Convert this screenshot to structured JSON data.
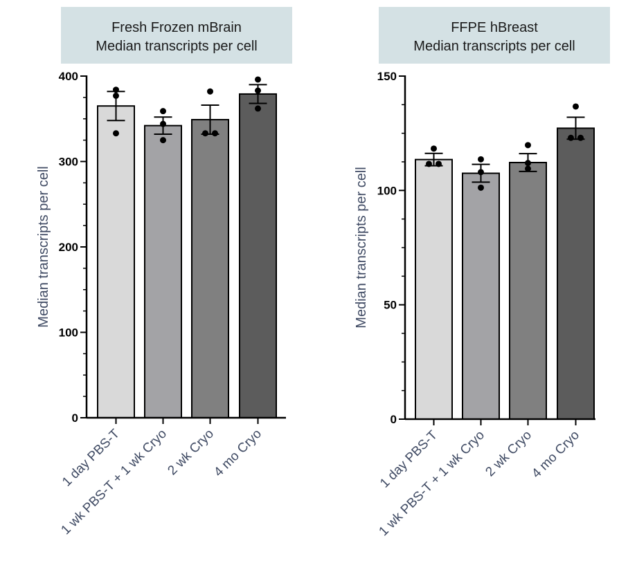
{
  "colors": {
    "title_box": "#d4e1e4",
    "axis": "#000000",
    "axis_label": "#3f4a63",
    "bar_fills": [
      "#d9d9d9",
      "#a3a3a6",
      "#808080",
      "#5c5c5c"
    ],
    "point": "#000000"
  },
  "chart_data": [
    {
      "type": "bar",
      "title": "Fresh Frozen mBrain\nMedian transcripts per cell",
      "xlabel": "",
      "ylabel": "Median transcripts per cell",
      "ylim": [
        0,
        400
      ],
      "yticks": [
        0,
        100,
        200,
        300,
        400
      ],
      "minor_ticks_per_major": 4,
      "grid": false,
      "categories": [
        "1 day PBS-T",
        "1 wk PBS-T + 1 wk Cryo",
        "2 wk Cryo",
        "4 mo Cryo"
      ],
      "values": [
        365,
        342,
        349,
        379
      ],
      "errors": [
        17,
        10,
        17,
        11
      ],
      "points": [
        [
          384,
          377,
          333
        ],
        [
          359,
          344,
          325
        ],
        [
          382,
          333,
          333
        ],
        [
          396,
          383,
          362
        ]
      ]
    },
    {
      "type": "bar",
      "title": "FFPE hBreast\nMedian transcripts per cell",
      "xlabel": "",
      "ylabel": "Median transcripts per cell",
      "ylim": [
        0,
        150
      ],
      "yticks": [
        0,
        50,
        100,
        150
      ],
      "minor_ticks_per_major": 4,
      "grid": false,
      "categories": [
        "1 day PBS-T",
        "1 wk PBS-T + 1 wk Cryo",
        "2 wk Cryo",
        "4 mo Cryo"
      ],
      "values": [
        113.5,
        107.5,
        112.2,
        127.2
      ],
      "errors": [
        2.7,
        3.9,
        3.9,
        4.8
      ],
      "points": [
        [
          118.3,
          111.6,
          111.6
        ],
        [
          113.6,
          108.0,
          101.2
        ],
        [
          119.8,
          112.0,
          109.5
        ],
        [
          136.7,
          123.0,
          123.0
        ]
      ]
    }
  ]
}
